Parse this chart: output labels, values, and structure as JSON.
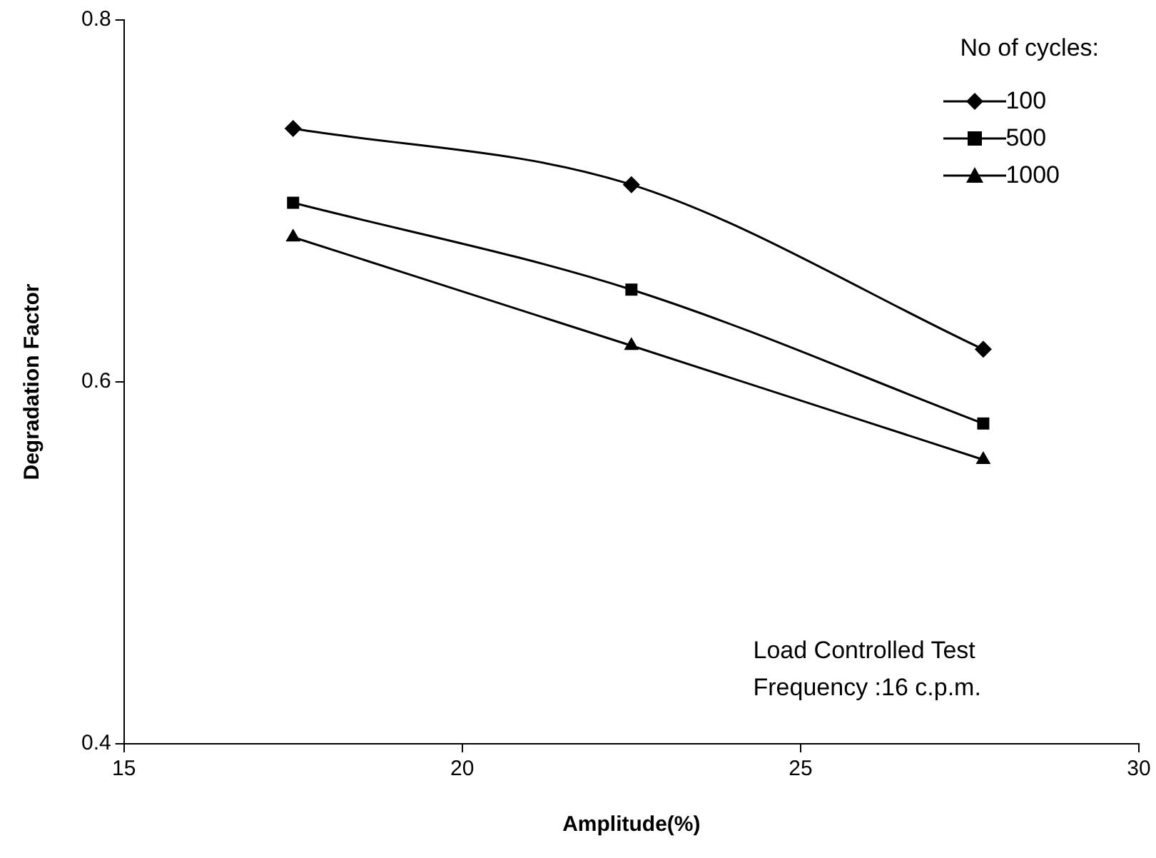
{
  "chart_data": {
    "type": "line",
    "xlabel": "Amplitude(%)",
    "ylabel": "Degradation Factor",
    "x": [
      17.5,
      22.5,
      27.7
    ],
    "series": [
      {
        "name": "100",
        "color": "#000000",
        "marker": "diamond",
        "values": [
          0.74,
          0.709,
          0.618
        ]
      },
      {
        "name": "500",
        "color": "#000000",
        "marker": "square",
        "values": [
          0.699,
          0.651,
          0.577
        ]
      },
      {
        "name": "1000",
        "color": "#000000",
        "marker": "triangle",
        "values": [
          0.68,
          0.62,
          0.557
        ]
      }
    ],
    "xlim": [
      15,
      30
    ],
    "xticks": [
      15,
      20,
      25,
      30
    ],
    "ylim": [
      0.4,
      0.8
    ],
    "yticks": [
      {
        "value": 0.4,
        "label": "0.4"
      },
      {
        "value": 0.6,
        "label": "0.6"
      },
      {
        "value": 0.8,
        "label": "0.8"
      }
    ],
    "grid": false,
    "legend": "top right",
    "legend_title": "No of cycles:",
    "line_style": "solid",
    "annotations": [
      "Load Controlled Test",
      "Frequency :16 c.p.m."
    ]
  }
}
